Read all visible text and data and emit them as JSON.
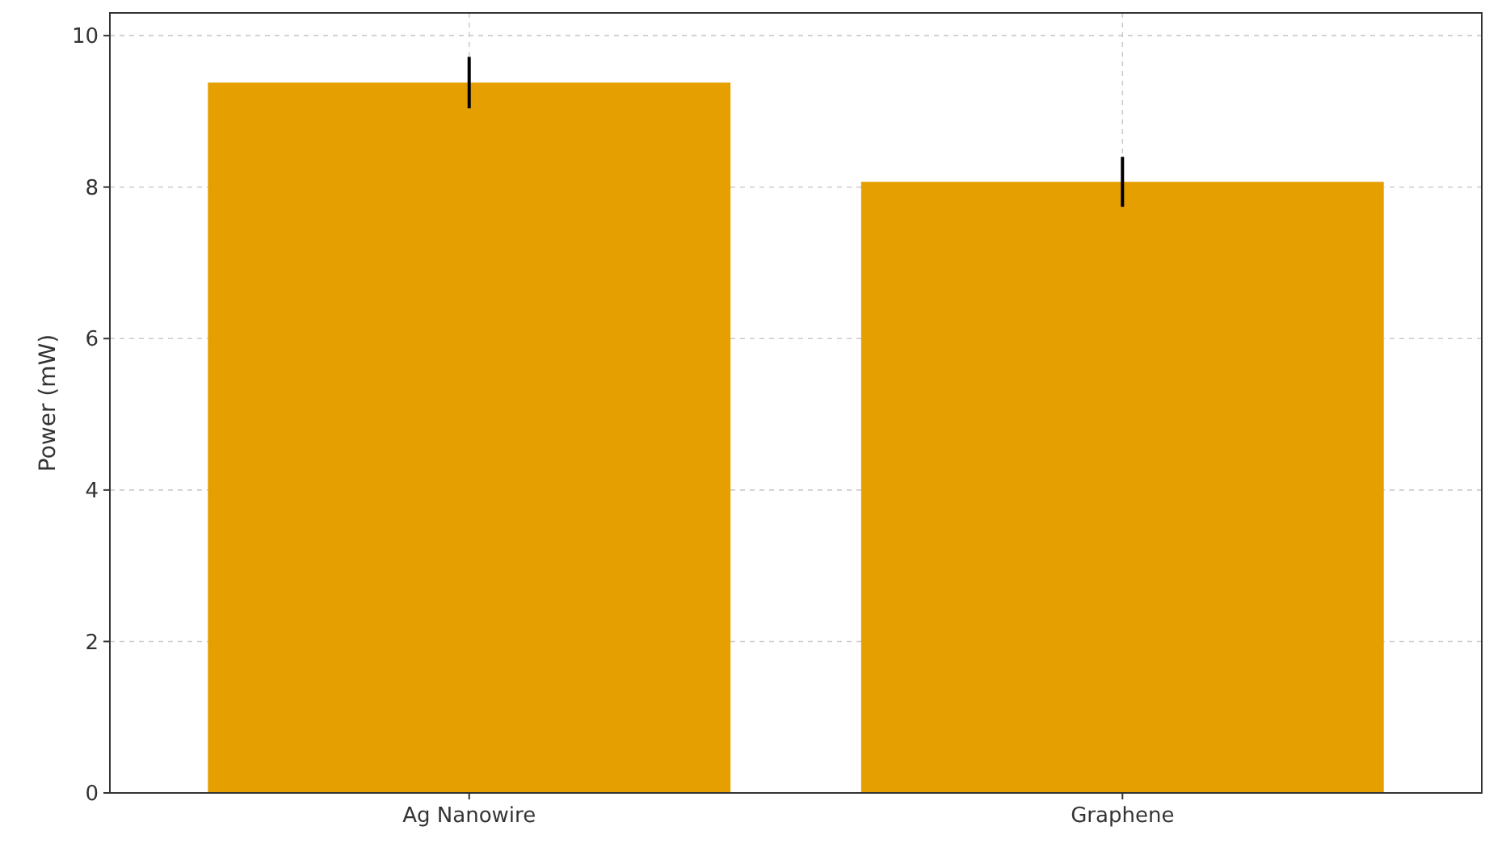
{
  "chart_data": {
    "type": "bar",
    "ylabel": "Power (mW)",
    "categories": [
      "Ag Nanowire",
      "Graphene"
    ],
    "values": [
      9.38,
      8.07
    ],
    "errors": [
      0.34,
      0.33
    ],
    "color": "#e69f00",
    "ylim": [
      0,
      10.3
    ],
    "yticks": [
      0,
      2,
      4,
      6,
      8,
      10
    ],
    "grid": true
  }
}
